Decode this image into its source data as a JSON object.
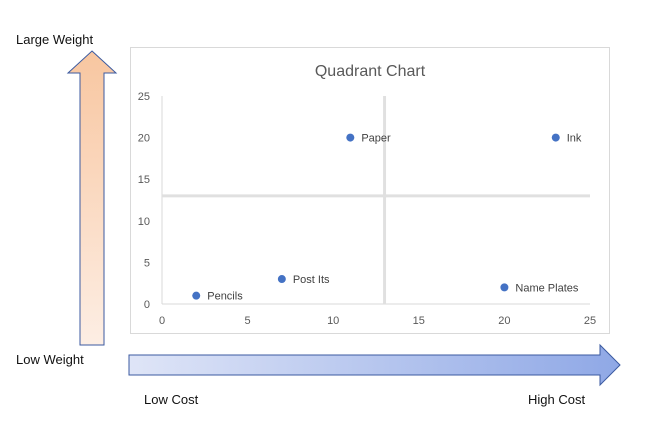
{
  "labels": {
    "y_high": "Large Weight",
    "y_low": "Low Weight",
    "x_low": "Low Cost",
    "x_high": "High Cost"
  },
  "colors": {
    "point": "#4472c4",
    "quadrant_line": "#e0e0e0",
    "up_arrow_top": "#f8c6a0",
    "up_arrow_bottom": "#fdeee4",
    "right_arrow_left": "#dfe5f7",
    "right_arrow_right": "#8fa8e6",
    "arrow_border": "#3b5aa0"
  },
  "chart_data": {
    "type": "scatter",
    "title": "Quadrant Chart",
    "xlim": [
      0,
      25
    ],
    "ylim": [
      0,
      25
    ],
    "xticks": [
      0,
      5,
      10,
      15,
      20,
      25
    ],
    "yticks": [
      0,
      5,
      10,
      15,
      20,
      25
    ],
    "grid": false,
    "quadrant_dividers": {
      "x": 13,
      "y": 13
    },
    "points": [
      {
        "label": "Pencils",
        "x": 2,
        "y": 1
      },
      {
        "label": "Post Its",
        "x": 7,
        "y": 3
      },
      {
        "label": "Paper",
        "x": 11,
        "y": 20
      },
      {
        "label": "Ink",
        "x": 23,
        "y": 20
      },
      {
        "label": "Name Plates",
        "x": 20,
        "y": 2
      }
    ]
  }
}
